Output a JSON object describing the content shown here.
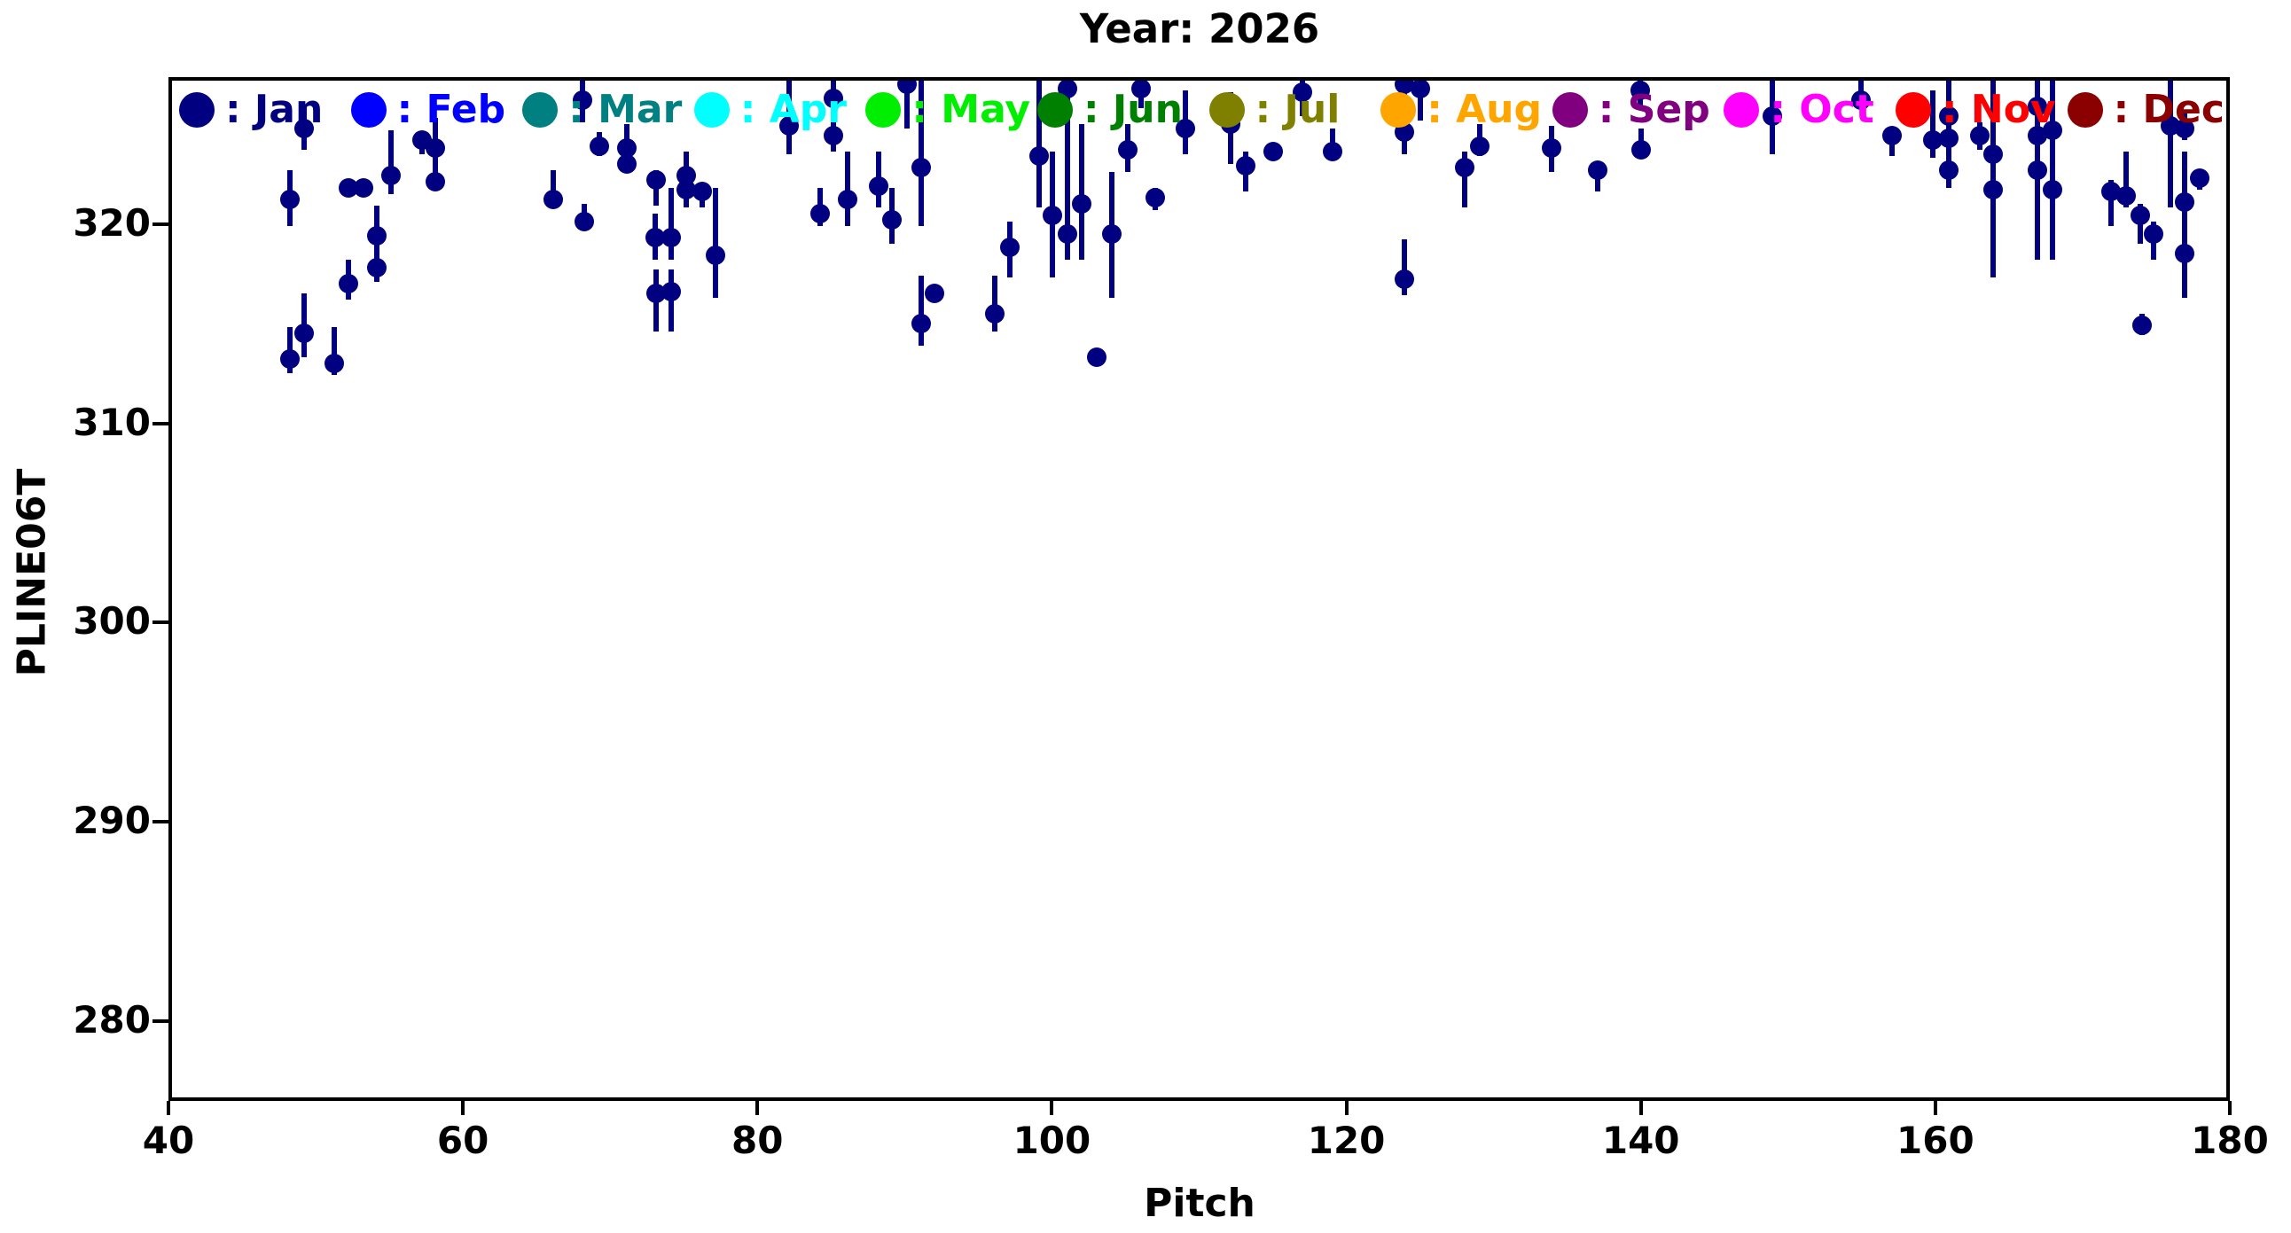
{
  "title": "Year: 2026",
  "axes": {
    "xlabel": "Pitch",
    "ylabel": "PLINE06T",
    "x_ticks": [
      40,
      60,
      80,
      100,
      120,
      140,
      160,
      180
    ],
    "y_ticks": [
      320,
      310,
      300,
      290,
      280
    ],
    "xlim": [
      40,
      180
    ],
    "ylim": [
      276.0,
      327.38
    ]
  },
  "legend": {
    "items": [
      {
        "label": "Jan",
        "color": "#000080"
      },
      {
        "label": "Feb",
        "color": "#0000ff"
      },
      {
        "label": "Mar",
        "color": "#008080"
      },
      {
        "label": "Apr",
        "color": "#00ffff"
      },
      {
        "label": "May",
        "color": "#00ee00"
      },
      {
        "label": "Jun",
        "color": "#008000"
      },
      {
        "label": "Jul",
        "color": "#808000"
      },
      {
        "label": "Aug",
        "color": "#ffa500"
      },
      {
        "label": "Sep",
        "color": "#800080"
      },
      {
        "label": "Oct",
        "color": "#ff00ff"
      },
      {
        "label": "Nov",
        "color": "#ff0000"
      },
      {
        "label": "Dec",
        "color": "#8b0000"
      }
    ]
  },
  "chart_data": {
    "type": "scatter",
    "title": "Year: 2026",
    "xlabel": "Pitch",
    "ylabel": "PLINE06T",
    "xlim": [
      40,
      180
    ],
    "ylim": [
      276.0,
      327.38
    ],
    "grid": false,
    "legend_position": "top-inside",
    "marker_style": "circle-with-vertical-error-bar",
    "series": [
      {
        "name": "Jan",
        "color": "#000080",
        "points": [
          {
            "x": 49.0,
            "y": 325.0,
            "lo": 323.9,
            "hi": 326.1
          },
          {
            "x": 54.9,
            "y": 322.6,
            "lo": 321.7,
            "hi": 324.9
          },
          {
            "x": 57.0,
            "y": 324.4,
            "lo": 323.7,
            "hi": 324.8
          },
          {
            "x": 57.9,
            "y": 324.0,
            "lo": 322.8,
            "hi": 325.5
          },
          {
            "x": 57.9,
            "y": 322.3,
            "lo": 321.9,
            "hi": 322.9
          },
          {
            "x": 52.0,
            "y": 322.0,
            "lo": 321.6,
            "hi": 322.4
          },
          {
            "x": 53.0,
            "y": 322.0,
            "lo": 321.6,
            "hi": 322.4
          },
          {
            "x": 48.0,
            "y": 321.4,
            "lo": 320.1,
            "hi": 322.9
          },
          {
            "x": 53.9,
            "y": 319.6,
            "lo": 318.2,
            "hi": 321.1
          },
          {
            "x": 53.9,
            "y": 318.0,
            "lo": 317.3,
            "hi": 318.5
          },
          {
            "x": 52.0,
            "y": 317.2,
            "lo": 316.4,
            "hi": 318.4
          },
          {
            "x": 49.0,
            "y": 314.7,
            "lo": 313.5,
            "hi": 316.7
          },
          {
            "x": 48.0,
            "y": 313.4,
            "lo": 312.7,
            "hi": 315.0
          },
          {
            "x": 51.0,
            "y": 313.2,
            "lo": 312.6,
            "hi": 315.0
          },
          {
            "x": 67.9,
            "y": 326.4,
            "lo": 325.3,
            "hi": 327.8
          },
          {
            "x": 69.0,
            "y": 324.1,
            "lo": 323.6,
            "hi": 324.8
          },
          {
            "x": 70.9,
            "y": 324.0,
            "lo": 322.8,
            "hi": 325.2
          },
          {
            "x": 70.9,
            "y": 323.2,
            "lo": 322.8,
            "hi": 325.2
          },
          {
            "x": 65.9,
            "y": 321.4,
            "lo": 321.0,
            "hi": 322.9
          },
          {
            "x": 68.0,
            "y": 320.3,
            "lo": 320.1,
            "hi": 321.2
          },
          {
            "x": 72.9,
            "y": 322.4,
            "lo": 321.1,
            "hi": 322.9
          },
          {
            "x": 72.8,
            "y": 319.5,
            "lo": 318.4,
            "hi": 320.7
          },
          {
            "x": 72.9,
            "y": 316.7,
            "lo": 314.8,
            "hi": 317.9
          },
          {
            "x": 73.9,
            "y": 319.5,
            "lo": 318.4,
            "hi": 322.0
          },
          {
            "x": 73.9,
            "y": 316.8,
            "lo": 314.8,
            "hi": 317.9
          },
          {
            "x": 74.9,
            "y": 322.6,
            "lo": 321.0,
            "hi": 323.8
          },
          {
            "x": 74.9,
            "y": 321.9,
            "lo": 321.0,
            "hi": 323.8
          },
          {
            "x": 76.0,
            "y": 321.8,
            "lo": 321.0,
            "hi": 322.1
          },
          {
            "x": 76.9,
            "y": 318.6,
            "lo": 316.5,
            "hi": 322.0
          },
          {
            "x": 81.9,
            "y": 325.1,
            "lo": 323.7,
            "hi": 327.8
          },
          {
            "x": 84.9,
            "y": 326.5,
            "lo": 323.8,
            "hi": 327.8
          },
          {
            "x": 84.9,
            "y": 324.6,
            "lo": 323.8,
            "hi": 327.8
          },
          {
            "x": 84.0,
            "y": 320.7,
            "lo": 320.1,
            "hi": 322.0
          },
          {
            "x": 85.9,
            "y": 321.4,
            "lo": 320.1,
            "hi": 323.8
          },
          {
            "x": 88.0,
            "y": 322.1,
            "lo": 321.0,
            "hi": 323.8
          },
          {
            "x": 88.9,
            "y": 320.4,
            "lo": 319.2,
            "hi": 322.0
          },
          {
            "x": 89.9,
            "y": 327.2,
            "lo": 325.0,
            "hi": 327.8
          },
          {
            "x": 90.9,
            "y": 323.0,
            "lo": 320.1,
            "hi": 327.8
          },
          {
            "x": 91.8,
            "y": 316.7,
            "lo": 316.4,
            "hi": 317.0
          },
          {
            "x": 90.9,
            "y": 315.2,
            "lo": 314.1,
            "hi": 317.6
          },
          {
            "x": 96.9,
            "y": 319.0,
            "lo": 317.5,
            "hi": 320.3
          },
          {
            "x": 95.9,
            "y": 315.7,
            "lo": 314.8,
            "hi": 317.6
          },
          {
            "x": 98.9,
            "y": 323.6,
            "lo": 321.0,
            "hi": 327.8
          },
          {
            "x": 99.8,
            "y": 320.6,
            "lo": 317.5,
            "hi": 323.8
          },
          {
            "x": 100.8,
            "y": 327.0,
            "lo": 326.5,
            "hi": 327.8
          },
          {
            "x": 100.8,
            "y": 319.7,
            "lo": 318.4,
            "hi": 327.8
          },
          {
            "x": 101.8,
            "y": 321.2,
            "lo": 318.4,
            "hi": 325.2
          },
          {
            "x": 103.8,
            "y": 319.7,
            "lo": 316.5,
            "hi": 322.8
          },
          {
            "x": 102.8,
            "y": 313.5,
            "lo": 313.3,
            "hi": 313.7
          },
          {
            "x": 104.9,
            "y": 323.9,
            "lo": 322.8,
            "hi": 325.2
          },
          {
            "x": 105.8,
            "y": 327.0,
            "lo": 326.0,
            "hi": 327.8
          },
          {
            "x": 106.8,
            "y": 321.5,
            "lo": 320.9,
            "hi": 322.0
          },
          {
            "x": 108.8,
            "y": 325.0,
            "lo": 323.7,
            "hi": 326.9
          },
          {
            "x": 111.9,
            "y": 325.2,
            "lo": 323.2,
            "hi": 326.8
          },
          {
            "x": 116.8,
            "y": 326.8,
            "lo": 325.6,
            "hi": 327.8
          },
          {
            "x": 112.9,
            "y": 323.1,
            "lo": 321.8,
            "hi": 323.8
          },
          {
            "x": 114.8,
            "y": 323.8,
            "lo": 323.5,
            "hi": 324.1
          },
          {
            "x": 118.8,
            "y": 323.8,
            "lo": 323.5,
            "hi": 325.0
          },
          {
            "x": 123.7,
            "y": 327.2,
            "lo": 326.6,
            "hi": 327.8
          },
          {
            "x": 124.8,
            "y": 327.0,
            "lo": 325.4,
            "hi": 327.8
          },
          {
            "x": 123.7,
            "y": 324.8,
            "lo": 323.7,
            "hi": 327.8
          },
          {
            "x": 123.7,
            "y": 317.4,
            "lo": 316.6,
            "hi": 319.4
          },
          {
            "x": 127.8,
            "y": 323.0,
            "lo": 321.0,
            "hi": 323.8
          },
          {
            "x": 128.8,
            "y": 324.1,
            "lo": 323.6,
            "hi": 325.2
          },
          {
            "x": 133.7,
            "y": 324.0,
            "lo": 322.8,
            "hi": 325.1
          },
          {
            "x": 139.7,
            "y": 326.9,
            "lo": 326.0,
            "hi": 327.8
          },
          {
            "x": 139.8,
            "y": 323.9,
            "lo": 323.7,
            "hi": 325.0
          },
          {
            "x": 136.8,
            "y": 322.9,
            "lo": 321.8,
            "hi": 323.0
          },
          {
            "x": 148.7,
            "y": 325.6,
            "lo": 323.7,
            "hi": 327.8
          },
          {
            "x": 154.7,
            "y": 326.4,
            "lo": 326.0,
            "hi": 327.8
          },
          {
            "x": 156.8,
            "y": 324.6,
            "lo": 323.6,
            "hi": 325.0
          },
          {
            "x": 159.6,
            "y": 324.4,
            "lo": 323.5,
            "hi": 326.9
          },
          {
            "x": 160.7,
            "y": 325.6,
            "lo": 322.0,
            "hi": 327.8
          },
          {
            "x": 160.7,
            "y": 324.5,
            "lo": 322.0,
            "hi": 327.8
          },
          {
            "x": 160.7,
            "y": 322.9,
            "lo": 322.0,
            "hi": 327.8
          },
          {
            "x": 162.8,
            "y": 324.6,
            "lo": 323.9,
            "hi": 325.3
          },
          {
            "x": 163.7,
            "y": 323.7,
            "lo": 317.5,
            "hi": 327.8
          },
          {
            "x": 163.7,
            "y": 321.9,
            "lo": 317.5,
            "hi": 327.8
          },
          {
            "x": 166.7,
            "y": 326.1,
            "lo": 318.4,
            "hi": 327.8
          },
          {
            "x": 166.7,
            "y": 324.6,
            "lo": 318.4,
            "hi": 327.8
          },
          {
            "x": 166.7,
            "y": 322.9,
            "lo": 318.4,
            "hi": 327.8
          },
          {
            "x": 167.7,
            "y": 324.9,
            "lo": 318.4,
            "hi": 327.8
          },
          {
            "x": 167.7,
            "y": 321.9,
            "lo": 318.4,
            "hi": 327.8
          },
          {
            "x": 171.7,
            "y": 321.8,
            "lo": 320.1,
            "hi": 322.4
          },
          {
            "x": 172.7,
            "y": 321.6,
            "lo": 321.0,
            "hi": 323.8
          },
          {
            "x": 173.7,
            "y": 320.6,
            "lo": 319.2,
            "hi": 321.2
          },
          {
            "x": 174.6,
            "y": 319.7,
            "lo": 318.4,
            "hi": 320.3
          },
          {
            "x": 175.7,
            "y": 325.1,
            "lo": 321.0,
            "hi": 327.8
          },
          {
            "x": 176.7,
            "y": 325.0,
            "lo": 324.4,
            "hi": 325.9
          },
          {
            "x": 176.7,
            "y": 321.3,
            "lo": 316.5,
            "hi": 323.8
          },
          {
            "x": 176.7,
            "y": 318.7,
            "lo": 316.5,
            "hi": 323.8
          },
          {
            "x": 177.7,
            "y": 322.5,
            "lo": 321.9,
            "hi": 322.9
          },
          {
            "x": 173.8,
            "y": 315.1,
            "lo": 314.6,
            "hi": 315.7
          }
        ]
      }
    ]
  }
}
